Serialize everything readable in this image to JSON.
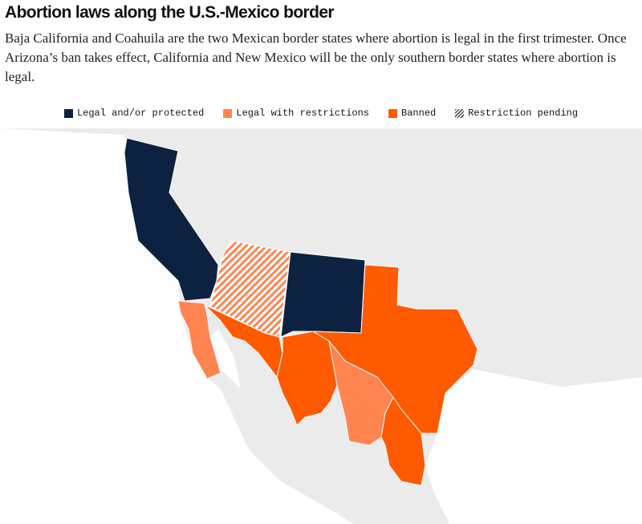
{
  "header": {
    "title": "Abortion laws along the U.S.-Mexico border",
    "subtitle": "Baja California and Coahuila are the two Mexican border states where abortion is legal in the first trimester. Once Arizona’s ban takes effect, California and New Mexico will be the only southern border states where abortion is legal."
  },
  "legend": [
    {
      "label": "Legal and/or protected",
      "color": "#0d2140"
    },
    {
      "label": "Legal with restrictions",
      "color": "#ff8450"
    },
    {
      "label": "Banned",
      "color": "#ff5a00"
    },
    {
      "label": "Restriction pending"
    }
  ]
}
